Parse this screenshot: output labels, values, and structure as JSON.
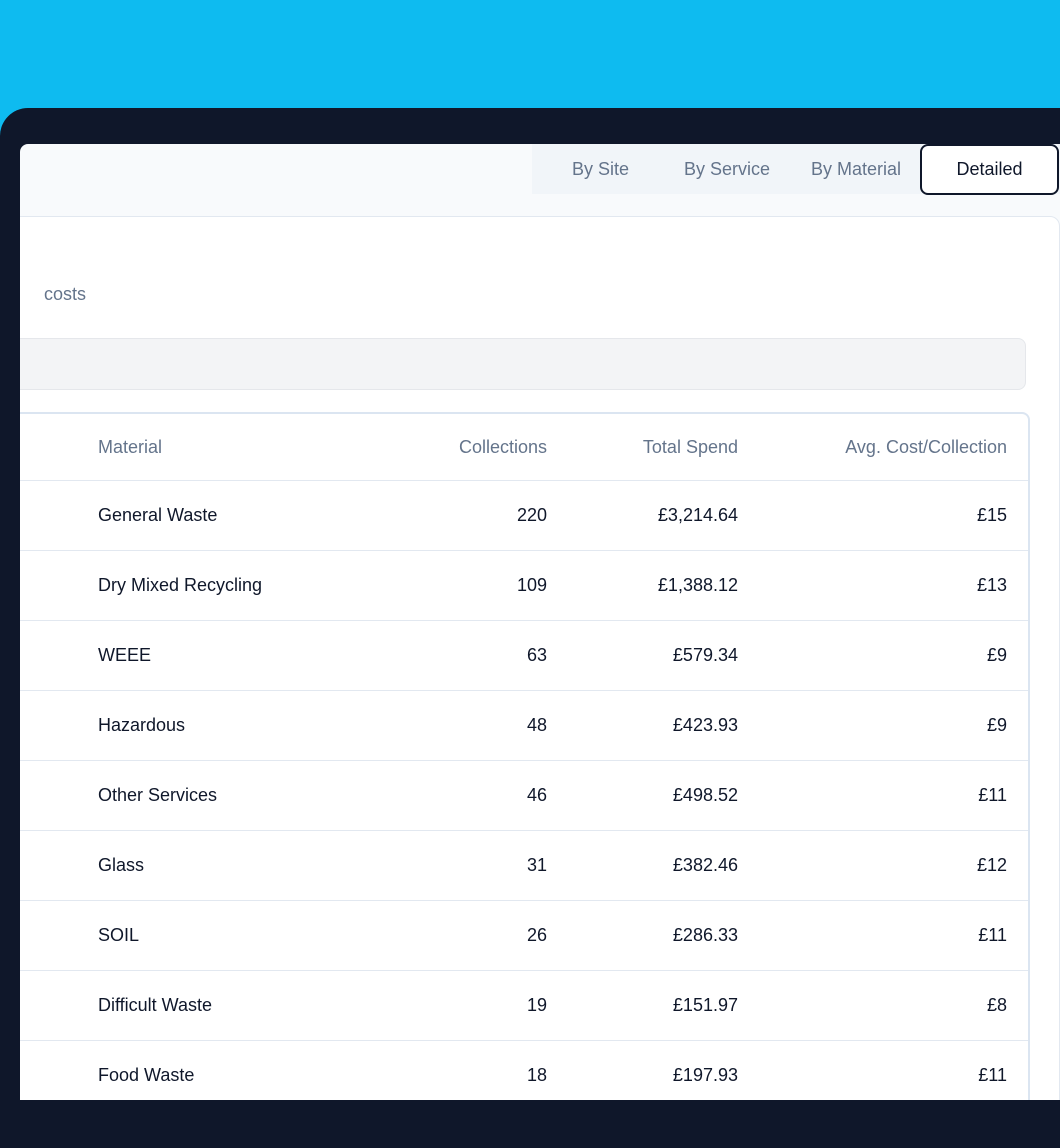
{
  "tabs": [
    {
      "label": "By Site"
    },
    {
      "label": "By Service"
    },
    {
      "label": "By Material"
    },
    {
      "label": "Detailed",
      "active": true
    }
  ],
  "subtitle": "costs",
  "table": {
    "headers": {
      "material": "Material",
      "collections": "Collections",
      "total_spend": "Total Spend",
      "avg_cost": "Avg. Cost/Collection"
    },
    "rows": [
      {
        "material": "General Waste",
        "collections": "220",
        "total_spend": "£3,214.64",
        "avg_cost": "£15"
      },
      {
        "material": "Dry Mixed Recycling",
        "collections": "109",
        "total_spend": "£1,388.12",
        "avg_cost": "£13"
      },
      {
        "material": "WEEE",
        "collections": "63",
        "total_spend": "£579.34",
        "avg_cost": "£9"
      },
      {
        "material": "Hazardous",
        "collections": "48",
        "total_spend": "£423.93",
        "avg_cost": "£9"
      },
      {
        "material": "Other Services",
        "collections": "46",
        "total_spend": "£498.52",
        "avg_cost": "£11"
      },
      {
        "material": "Glass",
        "collections": "31",
        "total_spend": "£382.46",
        "avg_cost": "£12"
      },
      {
        "material": "SOIL",
        "collections": "26",
        "total_spend": "£286.33",
        "avg_cost": "£11"
      },
      {
        "material": "Difficult Waste",
        "collections": "19",
        "total_spend": "£151.97",
        "avg_cost": "£8"
      },
      {
        "material": "Food Waste",
        "collections": "18",
        "total_spend": "£197.93",
        "avg_cost": "£11"
      }
    ]
  },
  "colors": {
    "background": "#0ebbf0",
    "device_frame": "#0f172a",
    "text_primary": "#0f172a",
    "text_muted": "#64748b"
  }
}
